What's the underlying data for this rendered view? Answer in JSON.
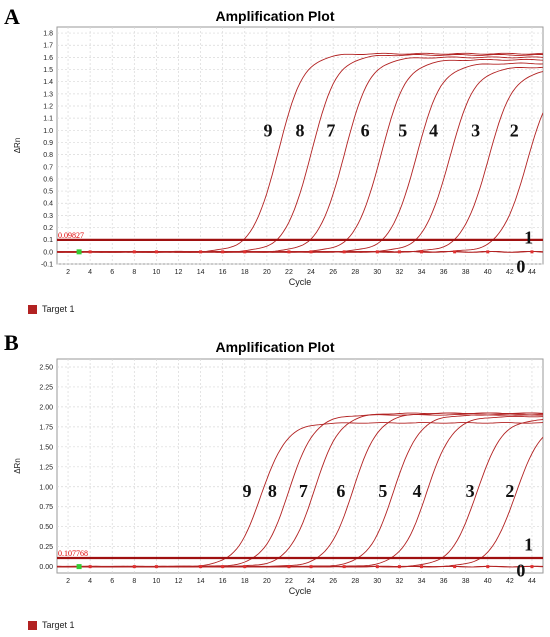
{
  "panels": [
    {
      "letter": "A",
      "title": "Amplification Plot",
      "legend_label": "Target 1",
      "threshold_label": "0.09827",
      "colors": {
        "curve": "#b22222",
        "threshold": "#a01010",
        "label": "#e00000",
        "grid": "#d8d8d8"
      },
      "chart_data": {
        "type": "line",
        "xlabel": "Cycle",
        "ylabel": "ΔRn",
        "xlim": [
          1,
          45
        ],
        "ylim": [
          -0.1,
          1.85
        ],
        "x_ticks": [
          2,
          4,
          6,
          8,
          10,
          12,
          14,
          16,
          18,
          20,
          22,
          24,
          26,
          28,
          30,
          32,
          34,
          36,
          38,
          40,
          42,
          44
        ],
        "y_ticks": [
          -0.1,
          0.0,
          0.1,
          0.2,
          0.3,
          0.4,
          0.5,
          0.6,
          0.7,
          0.8,
          0.9,
          1.0,
          1.1,
          1.2,
          1.3,
          1.4,
          1.5,
          1.6,
          1.7,
          1.8
        ],
        "y_tick_labels": [
          "-0.1",
          "0.0",
          "0.1",
          "0.2",
          "0.3",
          "0.4",
          "0.5",
          "0.6",
          "0.7",
          "0.8",
          "0.9",
          "1.0",
          "1.1",
          "1.2",
          "1.3",
          "1.4",
          "1.5",
          "1.6",
          "1.7",
          "1.8"
        ],
        "threshold": 0.09827,
        "grid": true,
        "legend_position": "bottom-left",
        "series": [
          {
            "label": "9",
            "midpoint": 21.0,
            "plateau": 1.63,
            "label_at": [
              20.1,
              1.0
            ]
          },
          {
            "label": "8",
            "midpoint": 24.0,
            "plateau": 1.62,
            "label_at": [
              23.0,
              1.0
            ]
          },
          {
            "label": "7",
            "midpoint": 27.0,
            "plateau": 1.6,
            "label_at": [
              25.8,
              1.0
            ]
          },
          {
            "label": "6",
            "midpoint": 30.3,
            "plateau": 1.58,
            "label_at": [
              28.9,
              1.0
            ]
          },
          {
            "label": "5",
            "midpoint": 33.5,
            "plateau": 1.55,
            "label_at": [
              32.3,
              1.0
            ]
          },
          {
            "label": "4",
            "midpoint": 36.5,
            "plateau": 1.52,
            "label_at": [
              35.1,
              1.0
            ]
          },
          {
            "label": "3",
            "midpoint": 40.0,
            "plateau": 1.5,
            "label_at": [
              38.9,
              1.0
            ]
          },
          {
            "label": "2",
            "midpoint": 43.5,
            "plateau": 1.45,
            "label_at": [
              42.4,
              1.0
            ]
          },
          {
            "label": "1",
            "midpoint": 60.0,
            "plateau": 0.2,
            "label_at": [
              43.7,
              0.12
            ]
          },
          {
            "label": "0",
            "midpoint": 80.0,
            "plateau": 0.02,
            "label_at": [
              43.0,
              -0.12
            ]
          }
        ]
      }
    },
    {
      "letter": "B",
      "title": "Amplification Plot",
      "legend_label": "Target 1",
      "threshold_label": "0.107768",
      "colors": {
        "curve": "#b22222",
        "threshold": "#a01010",
        "label": "#e00000",
        "grid": "#d8d8d8"
      },
      "chart_data": {
        "type": "line",
        "xlabel": "Cycle",
        "ylabel": "ΔRn",
        "xlim": [
          1,
          45
        ],
        "ylim": [
          -0.08,
          2.6
        ],
        "x_ticks": [
          2,
          4,
          6,
          8,
          10,
          12,
          14,
          16,
          18,
          20,
          22,
          24,
          26,
          28,
          30,
          32,
          34,
          36,
          38,
          40,
          42,
          44
        ],
        "y_ticks": [
          0,
          0.25,
          0.5,
          0.75,
          1.0,
          1.25,
          1.5,
          1.75,
          2.0,
          2.25,
          2.5
        ],
        "y_tick_labels": [
          "0.00",
          "0.25",
          "0.50",
          "0.75",
          "1.00",
          "1.25",
          "1.50",
          "1.75",
          "2.00",
          "2.25",
          "2.50"
        ],
        "threshold": 0.107768,
        "grid": true,
        "legend_position": "bottom-left",
        "series": [
          {
            "label": "9",
            "midpoint": 19.5,
            "plateau": 1.8,
            "label_at": [
              18.2,
              0.95
            ]
          },
          {
            "label": "8",
            "midpoint": 22.0,
            "plateau": 1.9,
            "label_at": [
              20.5,
              0.95
            ]
          },
          {
            "label": "7",
            "midpoint": 24.3,
            "plateau": 1.92,
            "label_at": [
              23.3,
              0.95
            ]
          },
          {
            "label": "6",
            "midpoint": 27.8,
            "plateau": 1.92,
            "label_at": [
              26.7,
              0.95
            ]
          },
          {
            "label": "5",
            "midpoint": 31.5,
            "plateau": 1.9,
            "label_at": [
              30.5,
              0.95
            ]
          },
          {
            "label": "4",
            "midpoint": 34.5,
            "plateau": 1.88,
            "label_at": [
              33.6,
              0.95
            ]
          },
          {
            "label": "3",
            "midpoint": 39.0,
            "plateau": 1.85,
            "label_at": [
              38.4,
              0.95
            ]
          },
          {
            "label": "2",
            "midpoint": 42.5,
            "plateau": 1.8,
            "label_at": [
              42.0,
              0.95
            ]
          },
          {
            "label": "1",
            "midpoint": 52.0,
            "plateau": 0.9,
            "label_at": [
              43.7,
              0.28
            ]
          },
          {
            "label": "0",
            "midpoint": 80.0,
            "plateau": 0.02,
            "label_at": [
              43.0,
              -0.05
            ]
          }
        ]
      }
    }
  ]
}
